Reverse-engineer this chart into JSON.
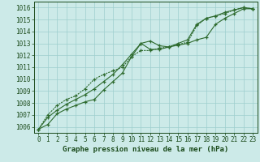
{
  "xlabel": "Graphe pression niveau de la mer (hPa)",
  "x": [
    0,
    1,
    2,
    3,
    4,
    5,
    6,
    7,
    8,
    9,
    10,
    11,
    12,
    13,
    14,
    15,
    16,
    17,
    18,
    19,
    20,
    21,
    22,
    23
  ],
  "series1": [
    1005.8,
    1006.2,
    1007.1,
    1007.5,
    1007.8,
    1008.1,
    1008.3,
    1009.1,
    1009.8,
    1010.5,
    1011.9,
    1013.0,
    1012.5,
    1012.5,
    1012.7,
    1012.85,
    1013.0,
    1013.3,
    1013.5,
    1014.6,
    1015.1,
    1015.5,
    1015.9,
    1015.9
  ],
  "series2": [
    1005.8,
    1006.8,
    1007.4,
    1007.9,
    1008.3,
    1008.7,
    1009.2,
    1009.8,
    1010.4,
    1011.2,
    1012.1,
    1013.0,
    1013.2,
    1012.8,
    1012.7,
    1013.0,
    1013.3,
    1014.6,
    1015.1,
    1015.3,
    1015.6,
    1015.8,
    1016.0,
    1015.9
  ],
  "series3": [
    1005.8,
    1007.0,
    1007.8,
    1008.3,
    1008.6,
    1009.2,
    1010.0,
    1010.4,
    1010.7,
    1011.0,
    1011.9,
    1012.4,
    1012.4,
    1012.6,
    1012.7,
    1012.9,
    1013.1,
    1014.5,
    1015.1,
    1015.3,
    1015.5,
    1015.8,
    1016.0,
    1015.9
  ],
  "line_color": "#2d6a2d",
  "bg_color": "#cceae8",
  "grid_color": "#9ecece",
  "text_color": "#1a4a1a",
  "ylim_min": 1005.5,
  "ylim_max": 1016.5,
  "yticks": [
    1006,
    1007,
    1008,
    1009,
    1010,
    1011,
    1012,
    1013,
    1014,
    1015,
    1016
  ],
  "xticks": [
    0,
    1,
    2,
    3,
    4,
    5,
    6,
    7,
    8,
    9,
    10,
    11,
    12,
    13,
    14,
    15,
    16,
    17,
    18,
    19,
    20,
    21,
    22,
    23
  ],
  "xlabel_fontsize": 6.5,
  "tick_fontsize": 5.5
}
